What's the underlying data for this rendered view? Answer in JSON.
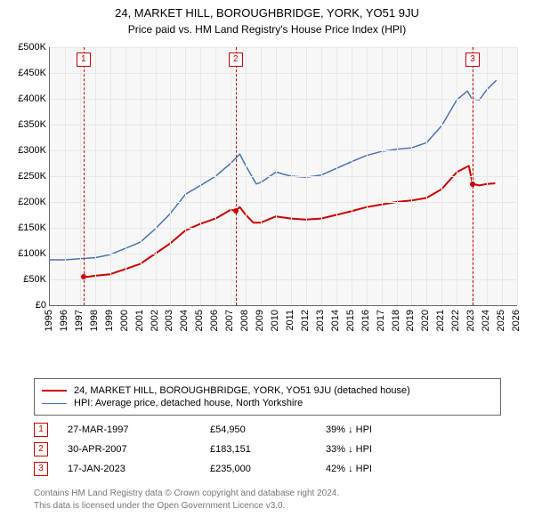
{
  "title": "24, MARKET HILL, BOROUGHBRIDGE, YORK, YO51 9JU",
  "subtitle": "Price paid vs. HM Land Registry's House Price Index (HPI)",
  "chart": {
    "type": "line",
    "background_color": "#f7f7f7",
    "grid_color": "#e8e8e8",
    "axis_color": "#666666",
    "label_fontsize": 11,
    "x": {
      "min": 1995,
      "max": 2026,
      "ticks": [
        1995,
        1996,
        1997,
        1998,
        1999,
        2000,
        2001,
        2002,
        2003,
        2004,
        2005,
        2006,
        2007,
        2008,
        2009,
        2010,
        2011,
        2012,
        2013,
        2014,
        2015,
        2016,
        2017,
        2018,
        2019,
        2020,
        2021,
        2022,
        2023,
        2024,
        2025,
        2026
      ],
      "tick_labels": [
        "1995",
        "1996",
        "1997",
        "1998",
        "1999",
        "2000",
        "2001",
        "2002",
        "2003",
        "2004",
        "2005",
        "2006",
        "2007",
        "2008",
        "2009",
        "2010",
        "2011",
        "2012",
        "2013",
        "2014",
        "2015",
        "2016",
        "2017",
        "2018",
        "2019",
        "2020",
        "2021",
        "2022",
        "2023",
        "2024",
        "2025",
        "2026"
      ]
    },
    "y": {
      "min": 0,
      "max": 500000,
      "ticks": [
        0,
        50000,
        100000,
        150000,
        200000,
        250000,
        300000,
        350000,
        400000,
        450000,
        500000
      ],
      "tick_labels": [
        "£0",
        "£50K",
        "£100K",
        "£150K",
        "£200K",
        "£250K",
        "£300K",
        "£350K",
        "£400K",
        "£450K",
        "£500K"
      ]
    },
    "markers": [
      {
        "id": "1",
        "x": 1997.23
      },
      {
        "id": "2",
        "x": 2007.33
      },
      {
        "id": "3",
        "x": 2023.05
      }
    ],
    "marker_color": "#cc0000",
    "series": [
      {
        "name": "property",
        "label": "24, MARKET HILL, BOROUGHBRIDGE, YORK, YO51 9JU (detached house)",
        "color": "#cc0000",
        "line_width": 2,
        "points_marker_radius": 3,
        "data": [
          [
            1997.23,
            54950
          ],
          [
            2007.33,
            183151
          ],
          [
            2023.05,
            235000
          ]
        ],
        "interp": [
          [
            1997.23,
            54950
          ],
          [
            1997.5,
            55000
          ],
          [
            1998,
            57000
          ],
          [
            1999,
            60000
          ],
          [
            2000,
            70000
          ],
          [
            2001,
            80000
          ],
          [
            2002,
            100000
          ],
          [
            2003,
            120000
          ],
          [
            2004,
            145000
          ],
          [
            2005,
            158000
          ],
          [
            2006,
            168000
          ],
          [
            2007,
            185000
          ],
          [
            2007.33,
            183151
          ],
          [
            2007.6,
            190000
          ],
          [
            2008,
            175000
          ],
          [
            2008.5,
            160000
          ],
          [
            2009,
            160000
          ],
          [
            2010,
            172000
          ],
          [
            2011,
            168000
          ],
          [
            2012,
            166000
          ],
          [
            2013,
            168000
          ],
          [
            2014,
            175000
          ],
          [
            2015,
            182000
          ],
          [
            2016,
            190000
          ],
          [
            2017,
            195000
          ],
          [
            2018,
            200000
          ],
          [
            2019,
            203000
          ],
          [
            2020,
            208000
          ],
          [
            2021,
            225000
          ],
          [
            2022,
            258000
          ],
          [
            2022.8,
            270000
          ],
          [
            2023.05,
            235000
          ],
          [
            2023.5,
            232000
          ],
          [
            2024,
            235000
          ],
          [
            2024.5,
            236000
          ]
        ]
      },
      {
        "name": "hpi",
        "label": "HPI: Average price, detached house, North Yorkshire",
        "color": "#4a72b8",
        "line_width": 1.5,
        "data": [
          [
            1995,
            88000
          ],
          [
            1996,
            88000
          ],
          [
            1997,
            90000
          ],
          [
            1998,
            92000
          ],
          [
            1999,
            98000
          ],
          [
            2000,
            110000
          ],
          [
            2001,
            122000
          ],
          [
            2002,
            148000
          ],
          [
            2003,
            178000
          ],
          [
            2004,
            215000
          ],
          [
            2005,
            232000
          ],
          [
            2006,
            250000
          ],
          [
            2007,
            275000
          ],
          [
            2007.6,
            293000
          ],
          [
            2008,
            270000
          ],
          [
            2008.7,
            235000
          ],
          [
            2009,
            238000
          ],
          [
            2010,
            258000
          ],
          [
            2011,
            250000
          ],
          [
            2012,
            248000
          ],
          [
            2013,
            252000
          ],
          [
            2014,
            265000
          ],
          [
            2015,
            278000
          ],
          [
            2016,
            290000
          ],
          [
            2017,
            298000
          ],
          [
            2018,
            302000
          ],
          [
            2019,
            305000
          ],
          [
            2020,
            315000
          ],
          [
            2021,
            348000
          ],
          [
            2022,
            398000
          ],
          [
            2022.7,
            415000
          ],
          [
            2023,
            400000
          ],
          [
            2023.5,
            398000
          ],
          [
            2024,
            418000
          ],
          [
            2024.6,
            435000
          ]
        ]
      }
    ]
  },
  "legend": {
    "rows": [
      {
        "color": "#cc0000",
        "width": 2,
        "label_path": "chart.series.0.label"
      },
      {
        "color": "#4a72b8",
        "width": 1.5,
        "label_path": "chart.series.1.label"
      }
    ]
  },
  "sales": [
    {
      "num": "1",
      "date": "27-MAR-1997",
      "price": "£54,950",
      "delta": "39% ↓ HPI"
    },
    {
      "num": "2",
      "date": "30-APR-2007",
      "price": "£183,151",
      "delta": "33% ↓ HPI"
    },
    {
      "num": "3",
      "date": "17-JAN-2023",
      "price": "£235,000",
      "delta": "42% ↓ HPI"
    }
  ],
  "attribution": {
    "line1": "Contains HM Land Registry data © Crown copyright and database right 2024.",
    "line2": "This data is licensed under the Open Government Licence v3.0."
  },
  "colors": {
    "text": "#000000",
    "muted": "#777777",
    "background": "#ffffff"
  }
}
